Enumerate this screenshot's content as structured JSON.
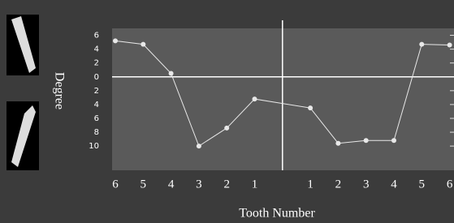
{
  "chart_data": {
    "type": "line",
    "y_label": "Degree",
    "x_label": "Tooth Number",
    "categories": [
      "6",
      "5",
      "4",
      "3",
      "2",
      "1",
      "1",
      "2",
      "3",
      "4",
      "5",
      "6"
    ],
    "values": [
      5.2,
      4.7,
      0.5,
      -10,
      -7.4,
      -3.2,
      -4.5,
      -9.6,
      -9.2,
      -9.2,
      4.7,
      4.6
    ],
    "color": "#e8e8e8",
    "ylim": [
      -13.5,
      7
    ],
    "yticks": [
      6,
      4,
      2,
      0,
      {
        "value": -2,
        "label": "2"
      },
      {
        "value": -4,
        "label": "4"
      },
      {
        "value": -6,
        "label": "6"
      },
      {
        "value": -8,
        "label": "8"
      },
      {
        "value": -10,
        "label": "10"
      }
    ]
  }
}
